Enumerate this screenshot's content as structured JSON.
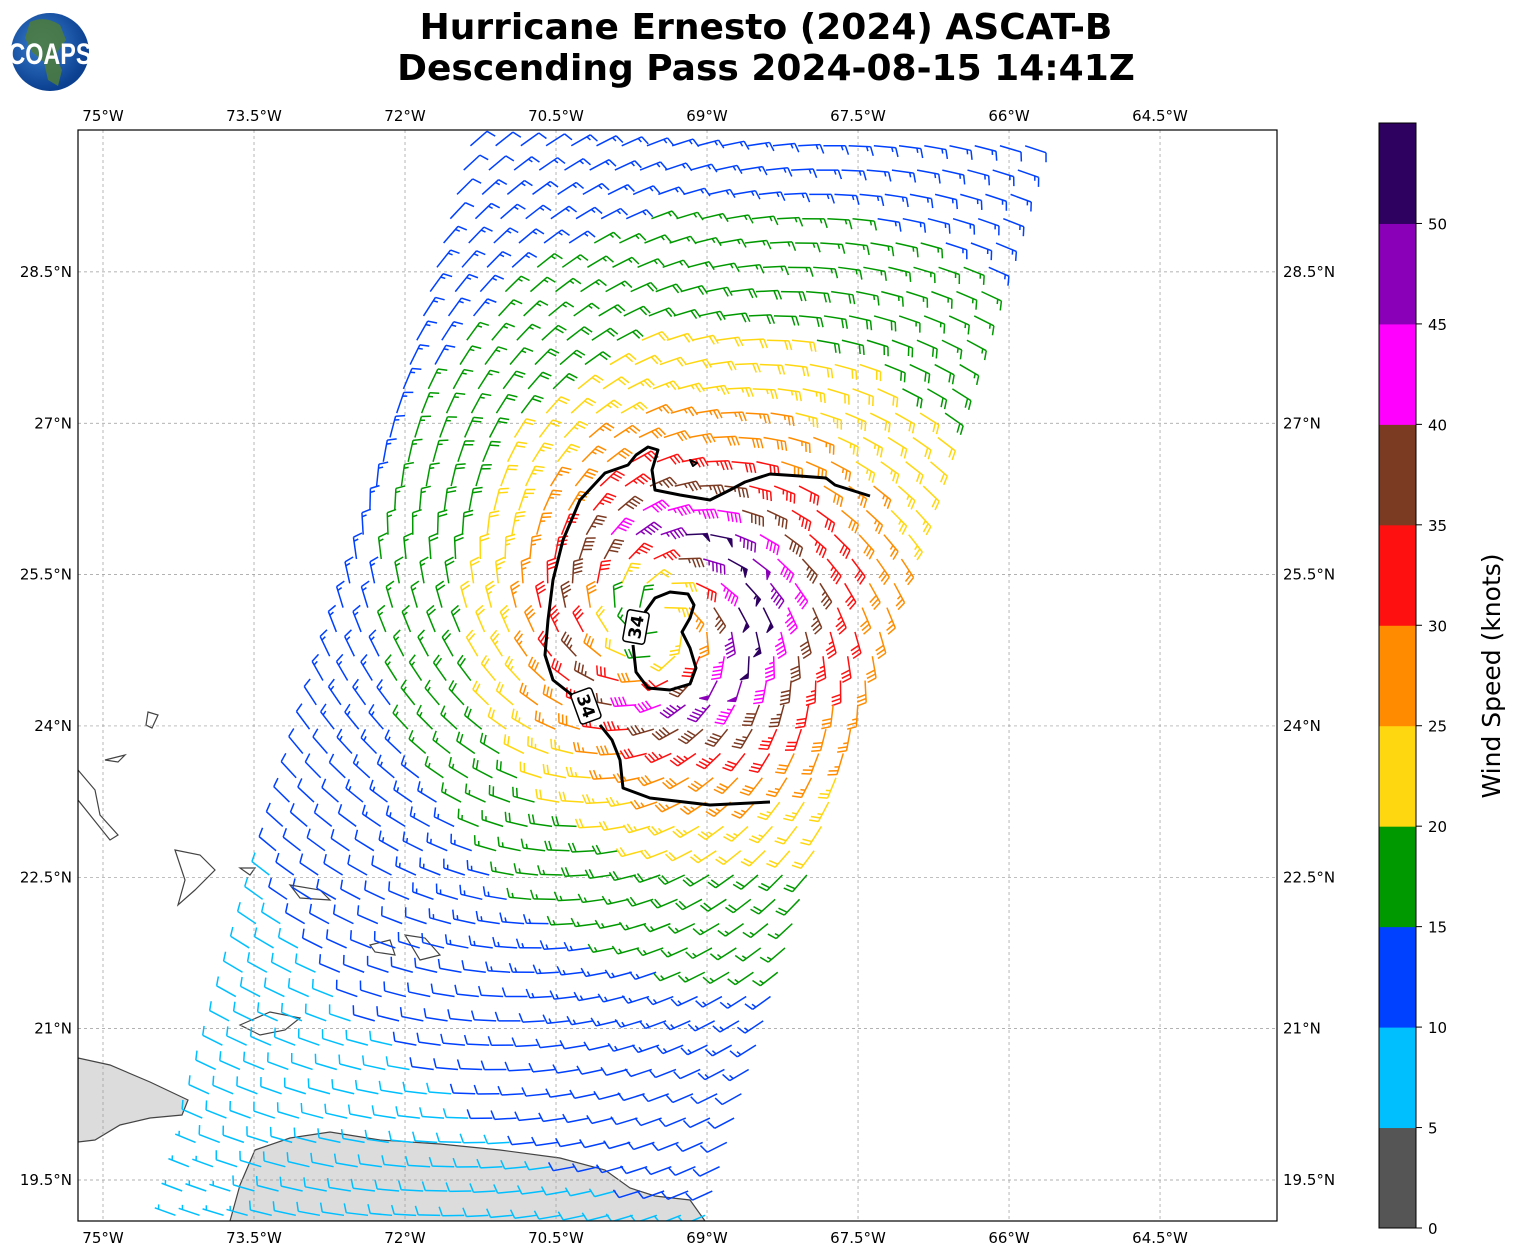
{
  "title": {
    "line1": "Hurricane Ernesto (2024) ASCAT-B",
    "line2": "Descending Pass 2024-08-15 14:41Z"
  },
  "logo": {
    "text": "COAPS"
  },
  "map": {
    "lon_ticks": [
      {
        "value": -75,
        "label": "75°W"
      },
      {
        "value": -73.5,
        "label": "73.5°W"
      },
      {
        "value": -72,
        "label": "72°W"
      },
      {
        "value": -70.5,
        "label": "70.5°W"
      },
      {
        "value": -69,
        "label": "69°W"
      },
      {
        "value": -67.5,
        "label": "67.5°W"
      },
      {
        "value": -66,
        "label": "66°W"
      },
      {
        "value": -64.5,
        "label": "64.5°W"
      }
    ],
    "lat_ticks": [
      {
        "value": 28.5,
        "label": "28.5°N"
      },
      {
        "value": 27,
        "label": "27°N"
      },
      {
        "value": 25.5,
        "label": "25.5°N"
      },
      {
        "value": 24,
        "label": "24°N"
      },
      {
        "value": 22.5,
        "label": "22.5°N"
      },
      {
        "value": 21,
        "label": "21°N"
      },
      {
        "value": 19.5,
        "label": "19.5°N"
      }
    ],
    "contour_label": "34"
  },
  "chart_data": {
    "type": "wind-barb map",
    "title": "Hurricane Ernesto (2024) ASCAT-B Descending Pass 2024-08-15 14:41Z",
    "storm_center": {
      "lon": -69.47,
      "lat": 25.05
    },
    "max_wind_kt": 47,
    "radius_max_wind_deg": 0.9,
    "contour_levels_kt": [
      34
    ],
    "swath_corners": {
      "top_left": [
        -71.35,
        29.75
      ],
      "bottom_left": [
        -74.28,
        19.15
      ],
      "top_right": [
        -65.84,
        29.75
      ],
      "bottom_right": [
        -69.02,
        19.15
      ]
    }
  },
  "colorbar": {
    "label": "Wind Speed (knots)",
    "bins": [
      0,
      5,
      10,
      15,
      20,
      25,
      30,
      35,
      40,
      45,
      50,
      55
    ],
    "colors": [
      "#555555",
      "#00BFFF",
      "#0040FF",
      "#009900",
      "#FFD710",
      "#FF8C00",
      "#FF1010",
      "#7B3A22",
      "#FF00FF",
      "#8A00B8",
      "#2E0060"
    ],
    "tick_labels": [
      "0",
      "5",
      "10",
      "15",
      "20",
      "25",
      "30",
      "35",
      "40",
      "45",
      "50"
    ]
  }
}
